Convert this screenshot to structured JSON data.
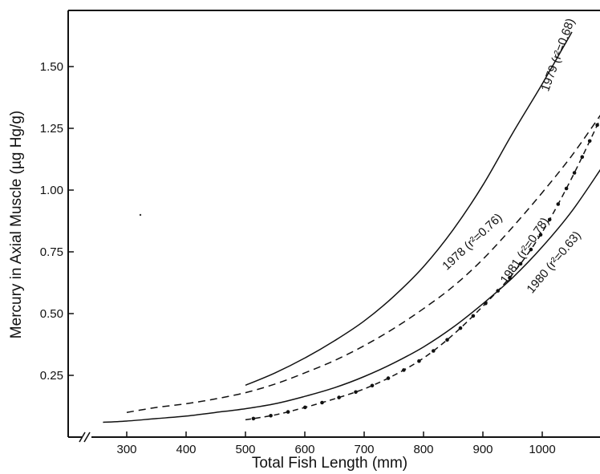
{
  "chart_data": {
    "type": "line",
    "title": "",
    "xlabel": "Total Fish Length (mm)",
    "ylabel": "Mercury in Axial Muscle (µg Hg/g)",
    "xlim": [
      200,
      1100
    ],
    "ylim": [
      0,
      1.8
    ],
    "x_ticks": [
      300,
      400,
      500,
      600,
      700,
      800,
      900,
      1000
    ],
    "x_tick_labels": [
      "300",
      "400",
      "500",
      "600",
      "700",
      "800",
      "900",
      "1000"
    ],
    "y_ticks": [
      0.25,
      0.5,
      0.75,
      1.0,
      1.25,
      1.5
    ],
    "y_tick_labels": [
      "0.25",
      "0.50",
      "0.75",
      "1.00",
      "1.25",
      "1.50"
    ],
    "x_axis_break": true,
    "grid": false,
    "legend": "none (curves labeled directly)",
    "series": [
      {
        "name": "1979 (r²=0.68)",
        "style": "solid",
        "x": [
          500,
          550,
          600,
          650,
          700,
          750,
          800,
          850,
          900,
          950,
          1000,
          1050
        ],
        "y": [
          0.21,
          0.26,
          0.32,
          0.39,
          0.47,
          0.57,
          0.69,
          0.84,
          1.02,
          1.23,
          1.43,
          1.64
        ]
      },
      {
        "name": "1978 (r²=0.76)",
        "style": "dashed",
        "x": [
          300,
          350,
          400,
          450,
          500,
          550,
          600,
          650,
          700,
          750,
          800,
          850,
          900,
          950,
          1000,
          1050,
          1100
        ],
        "y": [
          0.1,
          0.12,
          0.135,
          0.155,
          0.18,
          0.215,
          0.26,
          0.31,
          0.37,
          0.44,
          0.52,
          0.61,
          0.72,
          0.85,
          0.99,
          1.14,
          1.31
        ]
      },
      {
        "name": "1980 (r²=0.63)",
        "style": "solid",
        "x": [
          260,
          300,
          350,
          400,
          450,
          500,
          550,
          600,
          650,
          700,
          750,
          800,
          850,
          900,
          950,
          1000,
          1050,
          1100
        ],
        "y": [
          0.06,
          0.065,
          0.075,
          0.085,
          0.1,
          0.115,
          0.135,
          0.165,
          0.2,
          0.245,
          0.3,
          0.365,
          0.445,
          0.54,
          0.645,
          0.77,
          0.915,
          1.09
        ]
      },
      {
        "name": "1981 (r²=0.78)",
        "style": "dash-dot",
        "x": [
          500,
          550,
          600,
          650,
          700,
          750,
          800,
          850,
          900,
          950,
          1000,
          1050,
          1100
        ],
        "y": [
          0.07,
          0.09,
          0.12,
          0.155,
          0.195,
          0.25,
          0.32,
          0.415,
          0.53,
          0.66,
          0.83,
          1.05,
          1.3
        ]
      }
    ]
  }
}
